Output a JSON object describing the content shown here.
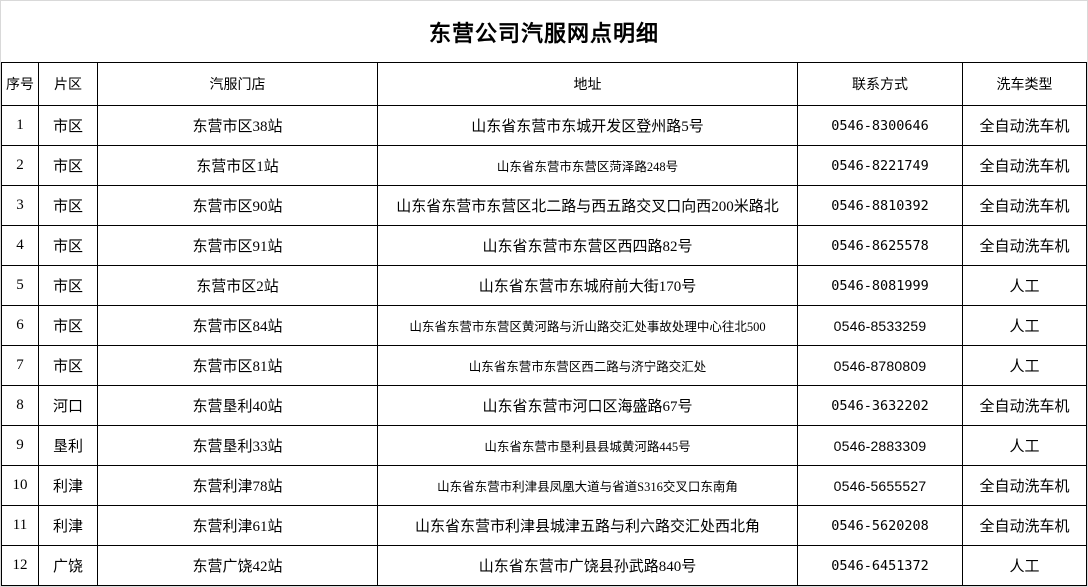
{
  "title": "东营公司汽服网点明细",
  "table": {
    "headers": [
      "序号",
      "片区",
      "汽服门店",
      "地址",
      "联系方式",
      "洗车类型"
    ],
    "rows": [
      {
        "no": "1",
        "district": "市区",
        "store": "东营市区38站",
        "address": "山东省东营市东城开发区登州路5号",
        "phone": "0546-8300646",
        "wash": "全自动洗车机",
        "address_small": false,
        "phone_sans": false
      },
      {
        "no": "2",
        "district": "市区",
        "store": "东营市区1站",
        "address": "山东省东营市东营区菏泽路248号",
        "phone": "0546-8221749",
        "wash": "全自动洗车机",
        "address_small": true,
        "phone_sans": false
      },
      {
        "no": "3",
        "district": "市区",
        "store": "东营市区90站",
        "address": "山东省东营市东营区北二路与西五路交叉口向西200米路北",
        "phone": "0546-8810392",
        "wash": "全自动洗车机",
        "address_small": false,
        "phone_sans": false
      },
      {
        "no": "4",
        "district": "市区",
        "store": "东营市区91站",
        "address": "山东省东营市东营区西四路82号",
        "phone": "0546-8625578",
        "wash": "全自动洗车机",
        "address_small": false,
        "phone_sans": false
      },
      {
        "no": "5",
        "district": "市区",
        "store": "东营市区2站",
        "address": "山东省东营市东城府前大街170号",
        "phone": "0546-8081999",
        "wash": "人工",
        "address_small": false,
        "phone_sans": false
      },
      {
        "no": "6",
        "district": "市区",
        "store": "东营市区84站",
        "address": "山东省东营市东营区黄河路与沂山路交汇处事故处理中心往北500",
        "phone": "0546-8533259",
        "wash": "人工",
        "address_small": true,
        "phone_sans": true
      },
      {
        "no": "7",
        "district": "市区",
        "store": "东营市区81站",
        "address": "山东省东营市东营区西二路与济宁路交汇处",
        "phone": "0546-8780809",
        "wash": "人工",
        "address_small": true,
        "phone_sans": true
      },
      {
        "no": "8",
        "district": "河口",
        "store": "东营垦利40站",
        "address": "山东省东营市河口区海盛路67号",
        "phone": "0546-3632202",
        "wash": "全自动洗车机",
        "address_small": false,
        "phone_sans": false
      },
      {
        "no": "9",
        "district": "垦利",
        "store": "东营垦利33站",
        "address": "山东省东营市垦利县县城黄河路445号",
        "phone": "0546-2883309",
        "wash": "人工",
        "address_small": true,
        "phone_sans": true
      },
      {
        "no": "10",
        "district": "利津",
        "store": "东营利津78站",
        "address": "山东省东营市利津县凤凰大道与省道S316交叉口东南角",
        "phone": "0546-5655527",
        "wash": "全自动洗车机",
        "address_small": true,
        "phone_sans": true
      },
      {
        "no": "11",
        "district": "利津",
        "store": "东营利津61站",
        "address": "山东省东营市利津县城津五路与利六路交汇处西北角",
        "phone": "0546-5620208",
        "wash": "全自动洗车机",
        "address_small": false,
        "phone_sans": false
      },
      {
        "no": "12",
        "district": "广饶",
        "store": "东营广饶42站",
        "address": "山东省东营市广饶县孙武路840号",
        "phone": "0546-6451372",
        "wash": "人工",
        "address_small": false,
        "phone_sans": false
      }
    ]
  },
  "colors": {
    "border": "#000000",
    "text": "#000000",
    "background": "#ffffff",
    "frame": "#d9d9d9"
  }
}
